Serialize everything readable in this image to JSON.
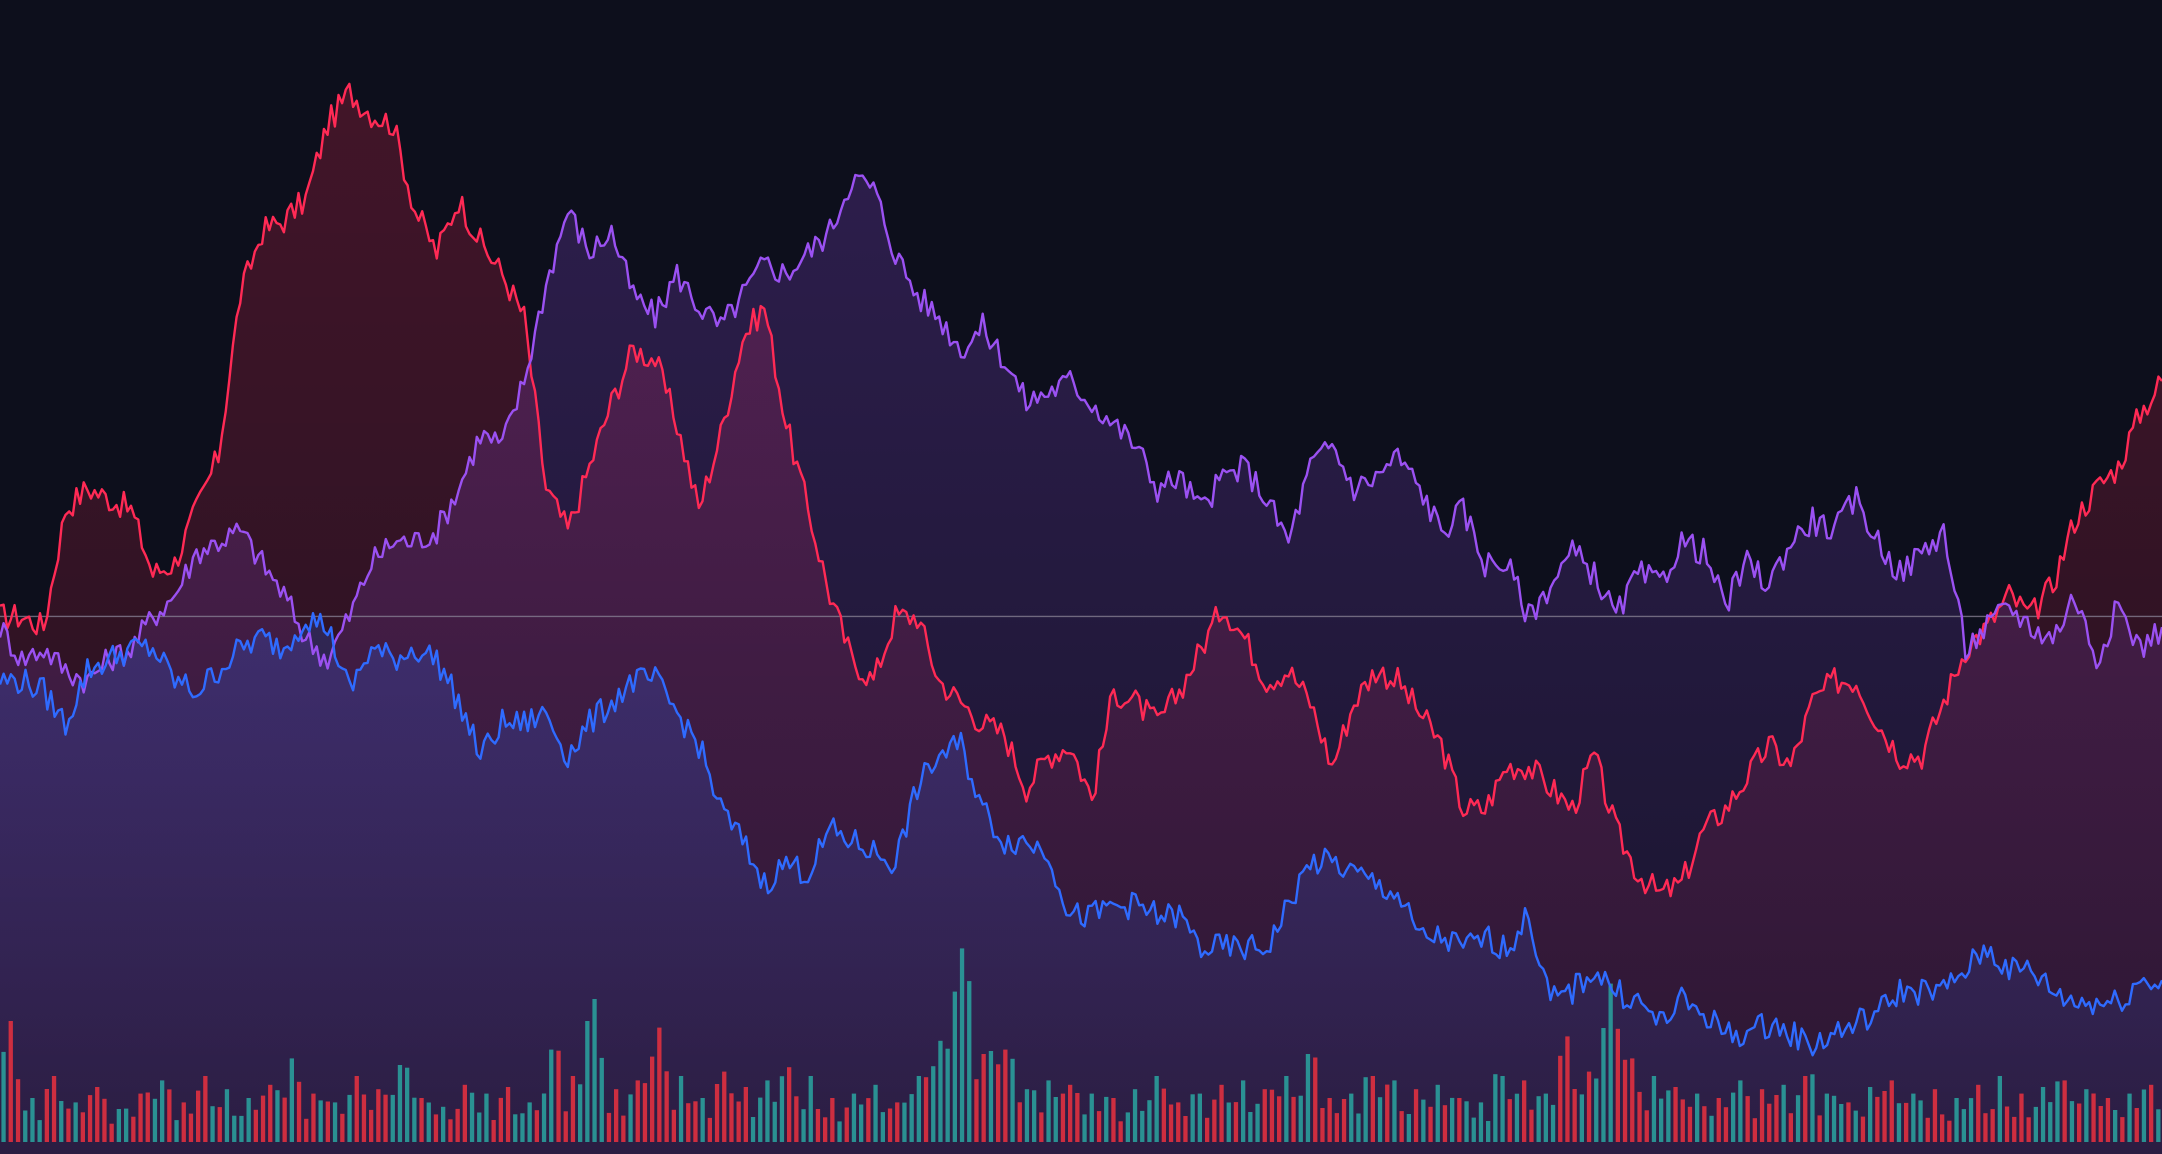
{
  "chart_data": {
    "type": "line",
    "title": "",
    "xlabel": "",
    "ylabel": "",
    "x_count": 100,
    "ylim": [
      0,
      100
    ],
    "baseline": 48,
    "grid": false,
    "legend": "none",
    "colors": {
      "background": "#0d0f1c",
      "baseline": "#8a8396",
      "volume_up": "#2a9d9b",
      "volume_down": "#e0303f"
    },
    "series": [
      {
        "color": "#ff2a55",
        "values": [
          48,
          48,
          47,
          58,
          60,
          59,
          58,
          52,
          53,
          58,
          63,
          78,
          84,
          85,
          87,
          94,
          97,
          95,
          94,
          86,
          82,
          87,
          83,
          80,
          76,
          60,
          56,
          62,
          68,
          73,
          72,
          66,
          58,
          65,
          74,
          77,
          66,
          58,
          50,
          44,
          42,
          48,
          48,
          42,
          40,
          38,
          37,
          32,
          35,
          36,
          31,
          41,
          40,
          38,
          41,
          45,
          49,
          46,
          42,
          43,
          40,
          34,
          40,
          43,
          42,
          39,
          36,
          30,
          30,
          34,
          34,
          32,
          30,
          35,
          28,
          24,
          22,
          23,
          28,
          30,
          33,
          36,
          34,
          40,
          42,
          42,
          38,
          35,
          35,
          40,
          45,
          47,
          50,
          48,
          51,
          57,
          60,
          62,
          67,
          70
        ]
      },
      {
        "color": "#9b51f2",
        "values": [
          47,
          44,
          45,
          43,
          42,
          44,
          45,
          48,
          50,
          54,
          55,
          56,
          53,
          50,
          46,
          44,
          48,
          53,
          55,
          55,
          56,
          60,
          65,
          64,
          70,
          79,
          86,
          82,
          84,
          78,
          76,
          80,
          77,
          75,
          78,
          81,
          80,
          82,
          84,
          89,
          88,
          82,
          78,
          76,
          73,
          75,
          72,
          68,
          69,
          70,
          68,
          66,
          64,
          60,
          61,
          58,
          61,
          62,
          59,
          55,
          62,
          64,
          60,
          61,
          63,
          60,
          56,
          58,
          53,
          53,
          48,
          51,
          54,
          52,
          48,
          52,
          51,
          55,
          54,
          49,
          53,
          51,
          55,
          57,
          56,
          59,
          55,
          52,
          54,
          56,
          45,
          47,
          49,
          47,
          46,
          50,
          44,
          49,
          45,
          47
        ]
      },
      {
        "color": "#2f6bff",
        "values": [
          42,
          42,
          41,
          38,
          43,
          44,
          45,
          45,
          42,
          41,
          43,
          45,
          46,
          45,
          48,
          47,
          41,
          45,
          44,
          45,
          44,
          40,
          35,
          38,
          38,
          39,
          35,
          38,
          40,
          42,
          42,
          39,
          36,
          30,
          27,
          23,
          25,
          24,
          28,
          27,
          26,
          25,
          32,
          35,
          36,
          30,
          27,
          27,
          26,
          20,
          20,
          21,
          21,
          20,
          20,
          17,
          17,
          17,
          17,
          21,
          25,
          25,
          24,
          23,
          22,
          18,
          18,
          17,
          18,
          17,
          20,
          12,
          13,
          15,
          13,
          12,
          10,
          12,
          11,
          9,
          9,
          10,
          9,
          8,
          9,
          10,
          11,
          13,
          13,
          13,
          15,
          17,
          15,
          15,
          13,
          12,
          12,
          12,
          14,
          14
        ]
      }
    ],
    "volume": {
      "values": [
        55,
        20,
        30,
        18,
        25,
        15,
        22,
        28,
        18,
        30,
        24,
        20,
        26,
        38,
        22,
        18,
        30,
        24,
        35,
        20,
        16,
        26,
        22,
        25,
        18,
        42,
        30,
        65,
        24,
        28,
        52,
        30,
        20,
        32,
        25,
        28,
        34,
        30,
        20,
        22,
        26,
        18,
        30,
        46,
        88,
        40,
        42,
        24,
        28,
        26,
        22,
        20,
        24,
        30,
        18,
        22,
        26,
        28,
        24,
        30,
        40,
        20,
        22,
        30,
        28,
        24,
        26,
        20,
        18,
        30,
        28,
        22,
        48,
        32,
        72,
        38,
        30,
        25,
        22,
        20,
        28,
        24,
        26,
        30,
        22,
        18,
        25,
        28,
        22,
        24,
        20,
        26,
        30,
        22,
        25,
        28,
        24,
        20,
        22,
        26
      ],
      "direction": [
        "down",
        "up",
        "down",
        "up",
        "down",
        "up",
        "down",
        "up",
        "down",
        "down",
        "up",
        "up",
        "down",
        "up",
        "down",
        "up",
        "down",
        "down",
        "up",
        "down",
        "up",
        "down",
        "up",
        "down",
        "up",
        "up",
        "down",
        "up",
        "down",
        "down",
        "down",
        "up",
        "up",
        "down",
        "down",
        "up",
        "down",
        "up",
        "down",
        "up",
        "up",
        "down",
        "up",
        "up",
        "up",
        "down",
        "down",
        "up",
        "up",
        "down",
        "up",
        "down",
        "up",
        "up",
        "down",
        "up",
        "down",
        "up",
        "down",
        "up",
        "up",
        "down",
        "up",
        "down",
        "up",
        "down",
        "up",
        "down",
        "up",
        "up",
        "down",
        "up",
        "down",
        "down",
        "up",
        "down",
        "up",
        "down",
        "up",
        "down",
        "up",
        "down",
        "up",
        "down",
        "up",
        "down",
        "up",
        "down",
        "up",
        "down",
        "up",
        "down",
        "up",
        "down",
        "up",
        "down",
        "up",
        "down",
        "up",
        "down"
      ]
    }
  }
}
